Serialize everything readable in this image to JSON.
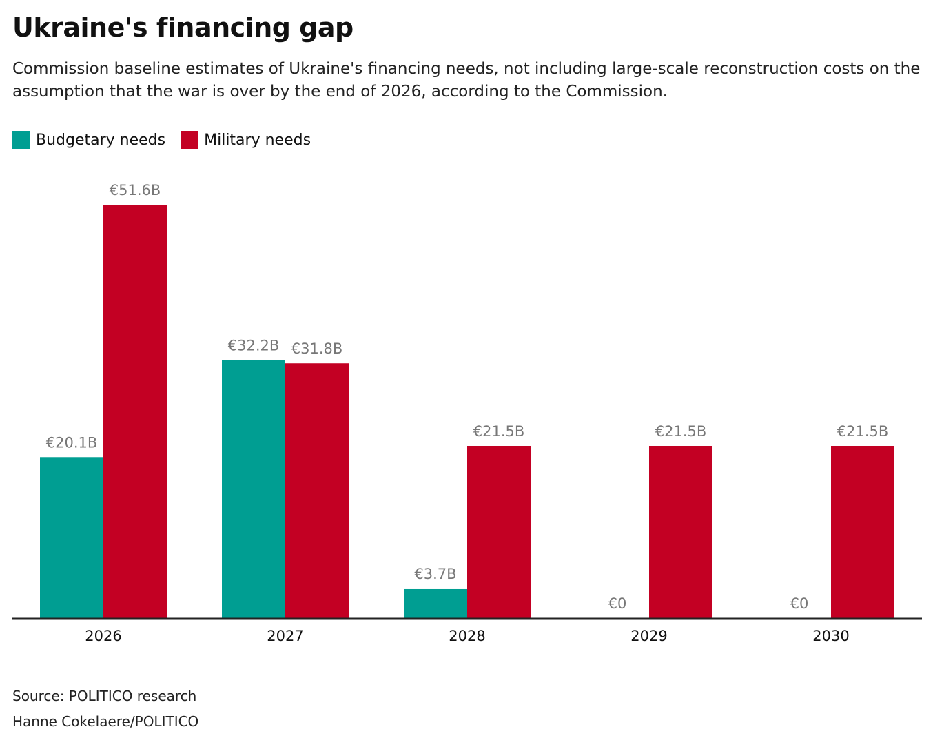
{
  "chart_data": {
    "type": "bar",
    "title": "Ukraine's financing gap",
    "subtitle": "Commission baseline estimates of Ukraine's financing needs, not including large-scale reconstruction costs on the assumption that the war is over by the end of 2026, according to the Commission.",
    "categories": [
      "2026",
      "2027",
      "2028",
      "2029",
      "2030"
    ],
    "series": [
      {
        "name": "Budgetary needs",
        "color": "#009e92",
        "values": [
          20.1,
          32.2,
          3.7,
          0,
          0
        ],
        "labels": [
          "€20.1B",
          "€32.2B",
          "€3.7B",
          "€0",
          "€0"
        ]
      },
      {
        "name": "Military needs",
        "color": "#c30023",
        "values": [
          51.6,
          31.8,
          21.5,
          21.5,
          21.5
        ],
        "labels": [
          "€51.6B",
          "€31.8B",
          "€21.5B",
          "€21.5B",
          "€21.5B"
        ]
      }
    ],
    "ylim": [
      0,
      51.6
    ],
    "grid": false,
    "legend": "top-left",
    "xlabel": "",
    "ylabel": ""
  },
  "footer": {
    "source": "Source: POLITICO research",
    "credit": "Hanne Cokelaere/POLITICO"
  }
}
